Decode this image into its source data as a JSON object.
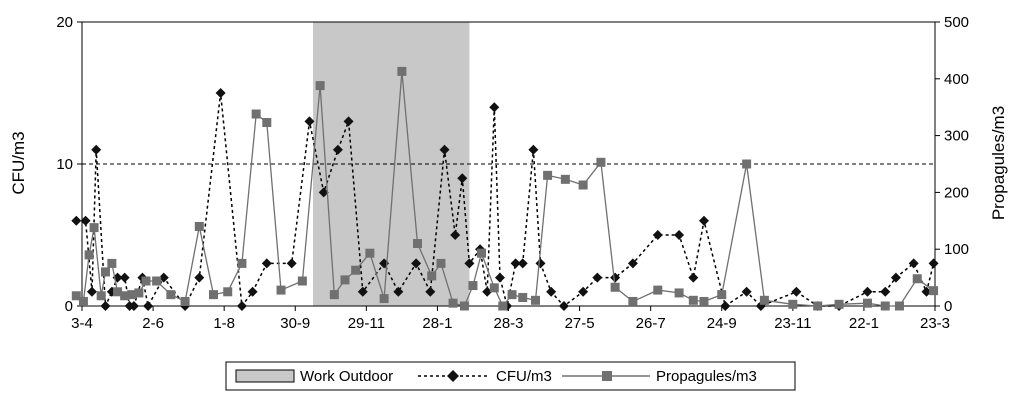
{
  "chart_data": {
    "type": "line",
    "title": "",
    "x_tick_labels": [
      "3-4",
      "2-6",
      "1-8",
      "30-9",
      "29-11",
      "28-1",
      "28-3",
      "27-5",
      "26-7",
      "24-9",
      "23-11",
      "22-1",
      "23-3"
    ],
    "y_left": {
      "label": "CFU/m3",
      "ylim": [
        0,
        20
      ],
      "ticks": [
        "0",
        "10",
        "20"
      ],
      "reference_line": 10
    },
    "y_right": {
      "label": "Propagules/m3",
      "ylim": [
        0,
        500
      ],
      "ticks": [
        "0",
        "100",
        "200",
        "300",
        "400",
        "500"
      ]
    },
    "x_domain": [
      0,
      12
    ],
    "shaded_region": {
      "name": "Work Outdoor",
      "x_start": 3.25,
      "x_end": 5.45,
      "color": "#c8c8c8"
    },
    "legend": {
      "placement": "bottom-center",
      "entries": [
        "Work Outdoor",
        "CFU/m3",
        "Propagules/m3"
      ]
    },
    "series": [
      {
        "name": "CFU/m3",
        "axis": "left",
        "style": "dashed",
        "marker": "diamond",
        "color": "#000000",
        "x": [
          -0.08,
          0.05,
          0.14,
          0.2,
          0.33,
          0.42,
          0.5,
          0.6,
          0.67,
          0.73,
          0.85,
          0.93,
          1.15,
          1.45,
          1.65,
          1.95,
          2.25,
          2.4,
          2.6,
          2.95,
          3.2,
          3.4,
          3.6,
          3.75,
          3.95,
          4.25,
          4.45,
          4.7,
          4.9,
          5.1,
          5.25,
          5.35,
          5.45,
          5.6,
          5.7,
          5.8,
          5.88,
          5.98,
          6.1,
          6.2,
          6.35,
          6.45,
          6.6,
          6.78,
          7.05,
          7.25,
          7.5,
          7.75,
          8.1,
          8.4,
          8.6,
          8.75,
          9.05,
          9.35,
          9.55,
          10.05,
          10.35,
          10.65,
          11.05,
          11.3,
          11.45,
          11.7,
          11.88,
          11.98
        ],
        "y": [
          6,
          6,
          1,
          11,
          0,
          1,
          2,
          2,
          0,
          0,
          2,
          0,
          2,
          0,
          2,
          15,
          0,
          1,
          3,
          3,
          13,
          8,
          11,
          13,
          1,
          3,
          1,
          3,
          1,
          11,
          5,
          9,
          3,
          4,
          1,
          14,
          2,
          0,
          3,
          3,
          11,
          3,
          1,
          0,
          1,
          2,
          2,
          3,
          5,
          5,
          2,
          6,
          0,
          1,
          0,
          1,
          0,
          0,
          1,
          1,
          2,
          3,
          1,
          3
        ]
      },
      {
        "name": "Propagules/m3",
        "axis": "right",
        "style": "solid",
        "marker": "square",
        "color": "#707070",
        "x": [
          -0.08,
          0.02,
          0.1,
          0.17,
          0.27,
          0.33,
          0.42,
          0.5,
          0.6,
          0.7,
          0.8,
          0.9,
          1.05,
          1.25,
          1.45,
          1.65,
          1.85,
          2.05,
          2.25,
          2.45,
          2.6,
          2.8,
          3.1,
          3.35,
          3.55,
          3.7,
          3.85,
          4.05,
          4.25,
          4.5,
          4.72,
          4.92,
          5.05,
          5.22,
          5.38,
          5.5,
          5.62,
          5.8,
          5.92,
          6.05,
          6.2,
          6.38,
          6.55,
          6.8,
          7.05,
          7.3,
          7.5,
          7.75,
          8.1,
          8.4,
          8.6,
          8.75,
          9.0,
          9.35,
          9.6,
          10.0,
          10.35,
          10.65,
          11.05,
          11.3,
          11.5,
          11.75,
          11.98
        ],
        "y": [
          18,
          8,
          90,
          138,
          18,
          60,
          75,
          25,
          18,
          20,
          23,
          44,
          44,
          20,
          8,
          140,
          20,
          25,
          75,
          338,
          323,
          28,
          44,
          388,
          20,
          46,
          63,
          93,
          13,
          413,
          110,
          53,
          75,
          5,
          0,
          36,
          93,
          32,
          0,
          20,
          15,
          10,
          230,
          223,
          213,
          253,
          33,
          8,
          28,
          23,
          10,
          8,
          20,
          250,
          10,
          3,
          0,
          3,
          5,
          0,
          0,
          48,
          27
        ]
      }
    ]
  }
}
